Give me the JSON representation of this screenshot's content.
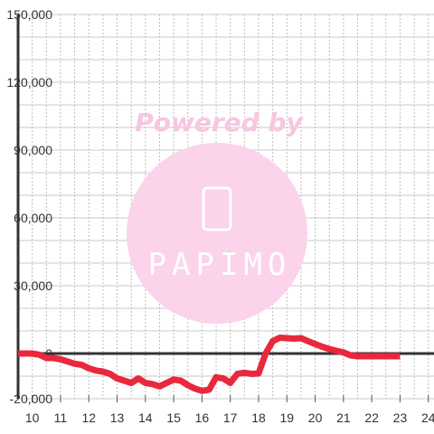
{
  "chart_data": {
    "type": "line",
    "title": "",
    "xlabel": "",
    "ylabel": "",
    "xlim": [
      9.5,
      24.2
    ],
    "ylim": [
      -20000,
      150000
    ],
    "x_ticks": [
      10,
      11,
      12,
      13,
      14,
      15,
      16,
      17,
      18,
      19,
      20,
      21,
      22,
      23,
      24
    ],
    "x_tick_labels": [
      "10",
      "11",
      "12",
      "13",
      "14",
      "15",
      "16",
      "17",
      "18",
      "19",
      "20",
      "21",
      "22",
      "23",
      "24"
    ],
    "y_ticks": [
      -20000,
      0,
      30000,
      60000,
      90000,
      120000,
      150000
    ],
    "y_tick_labels": [
      "-20,000",
      "0",
      "30,000",
      "60,000",
      "90,000",
      "120,000",
      "150,000"
    ],
    "grid": true,
    "series": [
      {
        "color": "#e8283c",
        "x": [
          9.5,
          10.0,
          10.25,
          10.5,
          10.75,
          11.0,
          11.25,
          11.5,
          11.75,
          12.0,
          12.25,
          12.5,
          12.75,
          13.0,
          13.25,
          13.5,
          13.75,
          14.0,
          14.25,
          14.5,
          14.75,
          15.0,
          15.25,
          15.5,
          15.75,
          16.0,
          16.25,
          16.5,
          16.75,
          17.0,
          17.25,
          17.5,
          17.75,
          18.0,
          18.25,
          18.5,
          18.75,
          19.0,
          19.25,
          19.5,
          19.75,
          20.0,
          20.25,
          20.5,
          20.75,
          21.0,
          21.25,
          21.5,
          21.75,
          22.0,
          22.25,
          22.5,
          22.75,
          23.0
        ],
        "y": [
          0,
          0,
          -500,
          -2000,
          -2000,
          -2500,
          -3500,
          -4500,
          -5000,
          -6500,
          -7500,
          -8000,
          -9000,
          -11000,
          -12000,
          -13000,
          -11000,
          -13000,
          -13500,
          -14500,
          -13000,
          -11500,
          -12000,
          -14000,
          -15500,
          -16500,
          -16000,
          -10500,
          -11000,
          -13000,
          -9000,
          -8500,
          -9000,
          -8800,
          0,
          5500,
          7000,
          6800,
          6600,
          6800,
          5500,
          4200,
          3000,
          2000,
          1200,
          500,
          -800,
          -1200,
          -1200,
          -1200,
          -1200,
          -1200,
          -1200,
          -1200
        ]
      }
    ],
    "watermark": {
      "text_top": "Powered by",
      "brand": "PAPIMO"
    }
  }
}
